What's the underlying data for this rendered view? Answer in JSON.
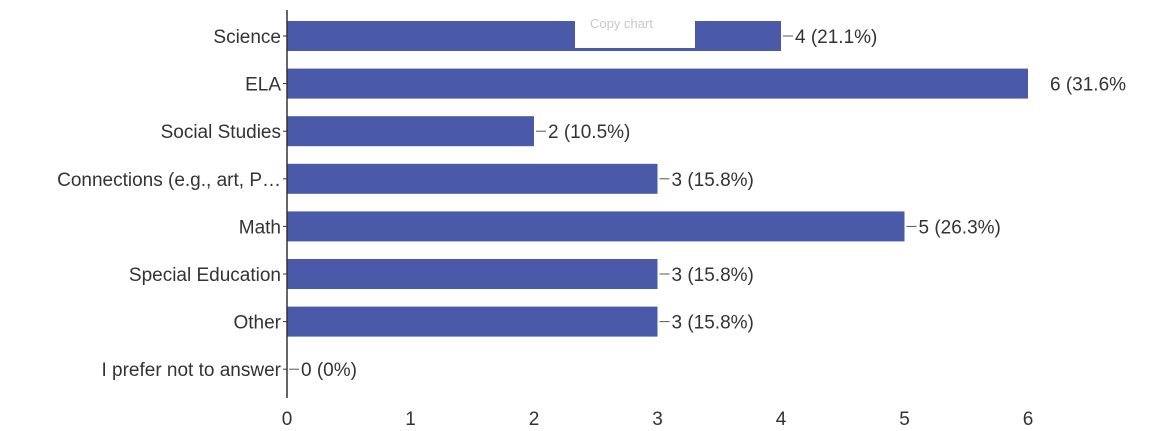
{
  "chart_data": {
    "type": "bar",
    "orientation": "horizontal",
    "categories": [
      "Science",
      "ELA",
      "Social Studies",
      "Connections (e.g., art, P…",
      "Math",
      "Special Education",
      "Other",
      "I prefer not to answer"
    ],
    "values": [
      4,
      6,
      2,
      3,
      5,
      3,
      3,
      0
    ],
    "value_labels": [
      "4 (21.1%)",
      "6 (31.6%",
      "2 (10.5%)",
      "3 (15.8%)",
      "5 (26.3%)",
      "3 (15.8%)",
      "3 (15.8%)",
      "0 (0%)"
    ],
    "x_ticks": [
      "0",
      "1",
      "2",
      "3",
      "4",
      "5",
      "6"
    ],
    "xlim": [
      0,
      6
    ],
    "grid": false,
    "bar_color": "#4a5aa8"
  },
  "overlay": {
    "copy_chart_label": "Copy chart"
  }
}
